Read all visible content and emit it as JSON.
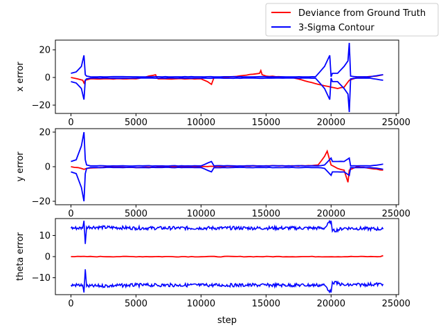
{
  "legend": {
    "entries": [
      {
        "label": "Deviance from Ground Truth",
        "color": "#ff0000"
      },
      {
        "label": "3-Sigma Contour",
        "color": "#0000ff"
      }
    ]
  },
  "chart_data": [
    {
      "type": "line",
      "ylabel": "x error",
      "xlabel": "",
      "xlim": [
        -1200,
        25200
      ],
      "ylim": [
        -26,
        27
      ],
      "xticks": [
        0,
        5000,
        10000,
        15000,
        20000,
        25000
      ],
      "yticks": [
        -20,
        0,
        20
      ],
      "series": [
        {
          "name": "Deviance from Ground Truth",
          "color": "#ff0000",
          "x": [
            0,
            500,
            900,
            1000,
            1100,
            1500,
            3000,
            5000,
            6500,
            6600,
            6700,
            8000,
            10000,
            10500,
            10800,
            11000,
            12000,
            14500,
            14600,
            14700,
            15000,
            17000,
            19500,
            20000,
            20500,
            21000,
            21400,
            22000,
            23500,
            24000
          ],
          "y": [
            0,
            -1,
            -2,
            -4,
            -2,
            -1,
            -1,
            -1,
            2,
            0,
            -1,
            -1,
            -1,
            -3,
            -5,
            0,
            0,
            3,
            5,
            2,
            1,
            0,
            -6,
            -7,
            -8,
            -7,
            -2,
            0,
            1,
            2
          ]
        },
        {
          "name": "3-Sigma Contour",
          "color": "#0000ff",
          "x": [
            0,
            400,
            800,
            1000,
            1100,
            1200,
            1500,
            5000,
            10000,
            15000,
            18800,
            19500,
            19900,
            20000,
            20100,
            20500,
            21000,
            21300,
            21400,
            21500,
            22000,
            23000,
            24000
          ],
          "y": [
            3,
            4,
            8,
            16,
            2,
            1,
            0.5,
            0.5,
            0.5,
            0.5,
            0.5,
            8,
            16,
            0.5,
            3,
            3,
            8,
            12,
            25,
            1,
            0.5,
            0.5,
            2
          ],
          "mirror": true
        }
      ]
    },
    {
      "type": "line",
      "ylabel": "y error",
      "xlabel": "",
      "xlim": [
        -1200,
        25200
      ],
      "ylim": [
        -22,
        22
      ],
      "xticks": [
        0,
        5000,
        10000,
        15000,
        20000,
        25000
      ],
      "yticks": [
        -20,
        0,
        20
      ],
      "series": [
        {
          "name": "Deviance from Ground Truth",
          "color": "#ff0000",
          "x": [
            0,
            800,
            1000,
            1200,
            3000,
            5000,
            8000,
            10000,
            15000,
            18000,
            19000,
            19500,
            19700,
            20000,
            20500,
            21000,
            21300,
            21400,
            22000,
            23000,
            24000
          ],
          "y": [
            0,
            -1,
            -1.5,
            -1,
            0,
            -0.5,
            0,
            0,
            0.5,
            0.5,
            1,
            6,
            9,
            1,
            -1,
            -2,
            -9,
            -2,
            0,
            -1,
            -2
          ]
        },
        {
          "name": "3-Sigma Contour",
          "color": "#0000ff",
          "x": [
            0,
            400,
            800,
            1000,
            1100,
            1200,
            1500,
            5000,
            10000,
            10800,
            11000,
            15000,
            19000,
            19500,
            20000,
            20100,
            20500,
            21000,
            21400,
            21500,
            22000,
            23000,
            24000
          ],
          "y": [
            3,
            4,
            12,
            20,
            4,
            1,
            0.5,
            0.5,
            0.5,
            3,
            0.5,
            0.5,
            0.5,
            1,
            5,
            3,
            3,
            3,
            5,
            0.5,
            0.5,
            0.5,
            1.5
          ],
          "mirror": true
        }
      ]
    },
    {
      "type": "line",
      "ylabel": "theta error",
      "xlabel": "step",
      "xlim": [
        -1200,
        25200
      ],
      "ylim": [
        -18,
        18
      ],
      "xticks": [
        0,
        5000,
        10000,
        15000,
        20000,
        25000
      ],
      "yticks": [
        -10,
        0,
        10
      ],
      "series": [
        {
          "name": "Deviance from Ground Truth",
          "color": "#ff0000",
          "x": [
            0,
            23800,
            24000
          ],
          "y": [
            0,
            0,
            0.5
          ]
        },
        {
          "name": "3-Sigma Contour",
          "color": "#0000ff",
          "x": [
            0,
            900,
            1000,
            1100,
            1200,
            5000,
            10000,
            15000,
            19500,
            20000,
            20100,
            21000,
            24000
          ],
          "y": [
            13.5,
            13.5,
            17,
            6,
            14,
            13.5,
            13.5,
            13.5,
            13.5,
            17,
            12,
            13.5,
            13
          ],
          "mirror": true
        }
      ]
    }
  ]
}
